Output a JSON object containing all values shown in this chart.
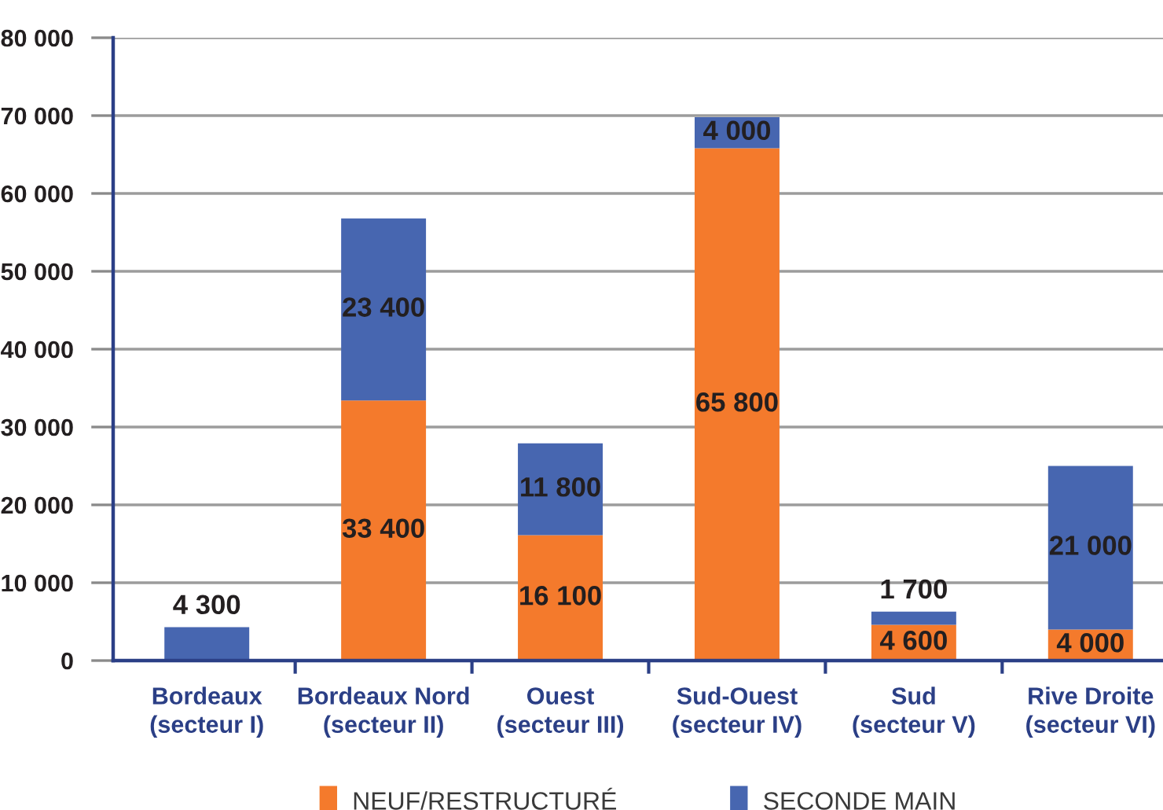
{
  "chart_data": {
    "type": "bar",
    "stacked": true,
    "categories": [
      "Bordeaux\n(secteur I)",
      "Bordeaux Nord\n(secteur II)",
      "Ouest\n(secteur III)",
      "Sud-Ouest\n(secteur IV)",
      "Sud\n(secteur V)",
      "Rive Droite\n(secteur VI)"
    ],
    "series": [
      {
        "name": "NEUF/RESTRUCTURÉ",
        "color": "#f47a2c",
        "values": [
          null,
          33400,
          16100,
          65800,
          4600,
          4000
        ],
        "value_labels": [
          null,
          "33 400",
          "16 100",
          "65 800",
          "4 600",
          "4 000"
        ]
      },
      {
        "name": "SECONDE MAIN",
        "color": "#4766b0",
        "values": [
          4300,
          23400,
          11800,
          4000,
          1700,
          21000
        ],
        "value_labels": [
          "4 300",
          "23 400",
          "11 800",
          "4 000",
          "1 700",
          "21 000"
        ]
      }
    ],
    "ylim": [
      0,
      80000
    ],
    "yticks": [
      0,
      {
        "value": 10000,
        "label": "10 000"
      },
      {
        "value": 20000,
        "label": "20 000"
      },
      {
        "value": 30000,
        "label": "30 000"
      },
      {
        "value": 40000,
        "label": "40 000"
      },
      {
        "value": 50000,
        "label": "50 000"
      },
      {
        "value": 60000,
        "label": "60 000"
      },
      {
        "value": 70000,
        "label": "70 000"
      },
      {
        "value": 80000,
        "label": "80 000"
      }
    ],
    "grid": "y",
    "legend": "bottom"
  }
}
